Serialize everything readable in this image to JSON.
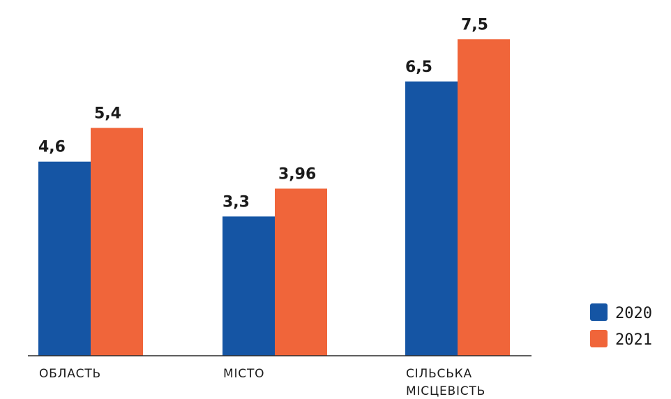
{
  "chart_data": {
    "type": "bar",
    "categories": [
      [
        "ОБЛАСТЬ"
      ],
      [
        "МІСТО"
      ],
      [
        "СІЛЬСЬКА",
        "МІСЦЕВІСТЬ"
      ]
    ],
    "series": [
      {
        "name": "2020",
        "color": "#1555a4",
        "values": [
          4.6,
          3.3,
          6.5
        ],
        "labels": [
          "4,6",
          "3,3",
          "6,5"
        ]
      },
      {
        "name": "2021",
        "color": "#f0653a",
        "values": [
          5.4,
          3.96,
          7.5
        ],
        "labels": [
          "5,4",
          "3,96",
          "7,5"
        ]
      }
    ],
    "ylim": [
      0,
      8
    ],
    "grid": false,
    "legend_position": "bottom-right"
  }
}
